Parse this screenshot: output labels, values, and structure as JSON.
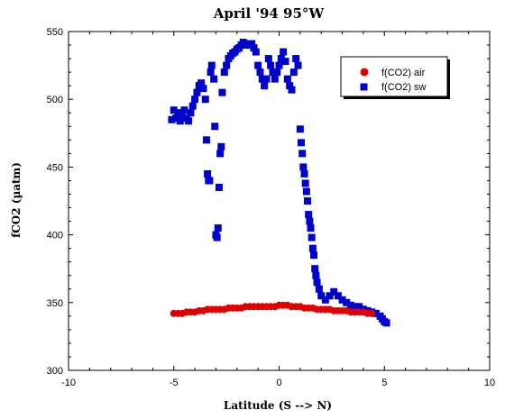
{
  "chart_data": {
    "type": "scatter",
    "title": "April '94 95°W",
    "xlabel": "Latitude (S --> N)",
    "ylabel": "fCO2 (µatm)",
    "xlim": [
      -10,
      10
    ],
    "ylim": [
      300,
      550
    ],
    "x_ticks": [
      -10,
      -5,
      0,
      5,
      10
    ],
    "y_ticks": [
      300,
      350,
      400,
      450,
      500,
      550
    ],
    "grid": false,
    "legend_position": "top-right",
    "series": [
      {
        "name": "f(CO2) air",
        "color": "#e00000",
        "marker": "circle",
        "x": [
          -5.0,
          -4.8,
          -4.6,
          -4.4,
          -4.2,
          -4.0,
          -3.8,
          -3.6,
          -3.4,
          -3.2,
          -3.0,
          -2.8,
          -2.6,
          -2.4,
          -2.2,
          -2.0,
          -1.8,
          -1.6,
          -1.4,
          -1.2,
          -1.0,
          -0.8,
          -0.6,
          -0.4,
          -0.2,
          0.0,
          0.2,
          0.4,
          0.6,
          0.8,
          1.0,
          1.2,
          1.4,
          1.6,
          1.8,
          2.0,
          2.2,
          2.4,
          2.6,
          2.8,
          3.0,
          3.2,
          3.4,
          3.6,
          3.8,
          4.0,
          4.2,
          4.4
        ],
        "y": [
          342,
          342,
          342,
          343,
          343,
          343,
          344,
          344,
          345,
          345,
          345,
          345,
          345,
          346,
          346,
          346,
          346,
          347,
          347,
          347,
          347,
          347,
          347,
          347,
          347,
          348,
          348,
          348,
          347,
          347,
          347,
          346,
          346,
          346,
          345,
          345,
          345,
          345,
          344,
          344,
          344,
          344,
          343,
          343,
          343,
          343,
          342,
          342
        ]
      },
      {
        "name": "f(CO2) sw",
        "color": "#0000cc",
        "marker": "square",
        "x": [
          -5.1,
          -5.0,
          -4.9,
          -4.8,
          -4.7,
          -4.6,
          -4.5,
          -4.4,
          -4.3,
          -4.2,
          -4.1,
          -4.0,
          -3.9,
          -3.8,
          -3.7,
          -3.6,
          -3.5,
          -3.45,
          -3.4,
          -3.35,
          -3.3,
          -3.25,
          -3.2,
          -3.1,
          -3.05,
          -3.0,
          -2.95,
          -2.9,
          -2.85,
          -2.8,
          -2.75,
          -2.7,
          -2.6,
          -2.5,
          -2.4,
          -2.3,
          -2.2,
          -2.1,
          -2.0,
          -1.9,
          -1.8,
          -1.7,
          -1.6,
          -1.5,
          -1.4,
          -1.3,
          -1.2,
          -1.1,
          -1.0,
          -0.9,
          -0.8,
          -0.7,
          -0.6,
          -0.5,
          -0.4,
          -0.3,
          -0.2,
          -0.1,
          0.0,
          0.1,
          0.2,
          0.3,
          0.4,
          0.5,
          0.6,
          0.7,
          0.8,
          0.9,
          1.0,
          1.05,
          1.1,
          1.15,
          1.2,
          1.25,
          1.3,
          1.35,
          1.4,
          1.45,
          1.5,
          1.55,
          1.6,
          1.65,
          1.7,
          1.75,
          1.8,
          1.9,
          2.0,
          2.2,
          2.4,
          2.6,
          2.8,
          3.0,
          3.2,
          3.4,
          3.6,
          3.8,
          4.0,
          4.2,
          4.4,
          4.6,
          4.8,
          4.9,
          5.0,
          5.1
        ],
        "y": [
          485,
          492,
          486,
          490,
          484,
          488,
          492,
          486,
          484,
          490,
          495,
          500,
          505,
          510,
          512,
          508,
          500,
          470,
          445,
          440,
          440,
          520,
          525,
          515,
          480,
          400,
          398,
          405,
          435,
          460,
          465,
          505,
          520,
          525,
          530,
          532,
          534,
          535,
          537,
          538,
          540,
          542,
          541,
          540,
          540,
          541,
          538,
          535,
          525,
          520,
          515,
          510,
          515,
          530,
          525,
          520,
          515,
          520,
          525,
          530,
          535,
          528,
          515,
          510,
          507,
          520,
          530,
          525,
          478,
          468,
          460,
          450,
          445,
          438,
          432,
          425,
          415,
          410,
          405,
          398,
          390,
          385,
          375,
          370,
          365,
          360,
          355,
          352,
          355,
          358,
          355,
          352,
          350,
          348,
          347,
          347,
          345,
          344,
          343,
          342,
          340,
          338,
          336,
          335
        ]
      }
    ]
  }
}
